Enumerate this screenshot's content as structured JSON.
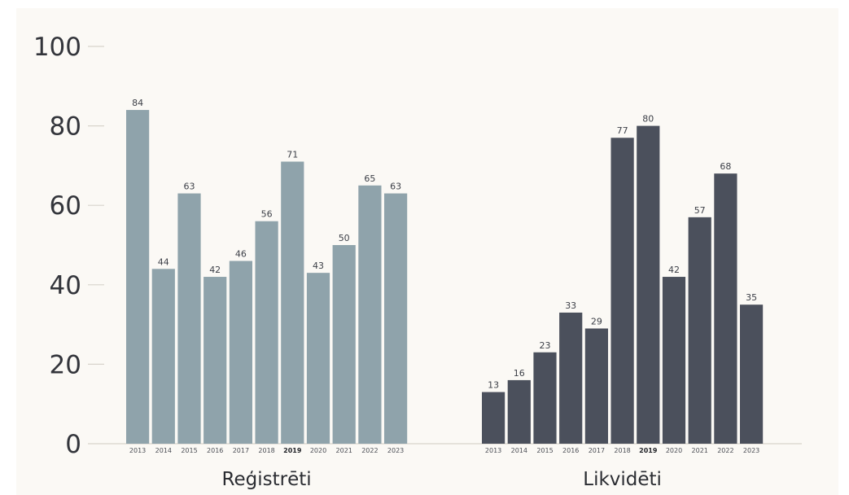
{
  "colors": {
    "background": "#ffffff",
    "panel": "#fbf9f5",
    "registered": "#8fa3ab",
    "liquidated": "#4b505c",
    "axis": "#d8d4cc",
    "text": "#33353b"
  },
  "chart_data": {
    "type": "bar",
    "title": "",
    "xlabel": "",
    "ylabel": "",
    "ylim": [
      0,
      100
    ],
    "yticks": [
      0,
      20,
      40,
      60,
      80,
      100
    ],
    "grid": false,
    "groups": [
      {
        "label": "Reģistrēti",
        "color": "#8fa3ab",
        "categories": [
          "2013",
          "2014",
          "2015",
          "2016",
          "2017",
          "2018",
          "2019",
          "2020",
          "2021",
          "2022",
          "2023"
        ],
        "values": [
          84,
          44,
          63,
          42,
          46,
          56,
          71,
          43,
          50,
          65,
          63
        ]
      },
      {
        "label": "Likvidēti",
        "color": "#4b505c",
        "categories": [
          "2013",
          "2014",
          "2015",
          "2016",
          "2017",
          "2018",
          "2019",
          "2020",
          "2021",
          "2022",
          "2023"
        ],
        "values": [
          13,
          16,
          23,
          33,
          29,
          77,
          80,
          42,
          57,
          68,
          35
        ]
      }
    ],
    "highlight_category": "2019"
  }
}
